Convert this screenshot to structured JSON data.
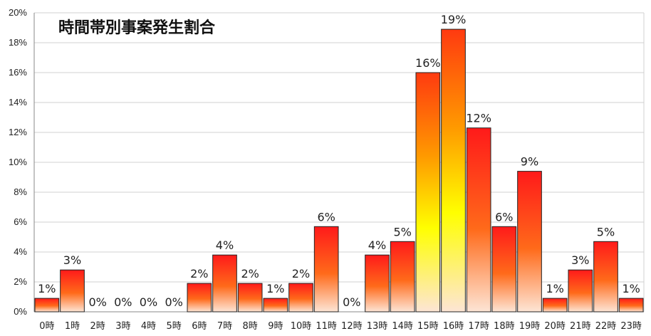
{
  "chart_data": {
    "type": "bar",
    "title": "時間帯別事案発生割合",
    "xlabel": "",
    "ylabel": "",
    "categories": [
      "0時",
      "1時",
      "2時",
      "3時",
      "4時",
      "5時",
      "6時",
      "7時",
      "8時",
      "9時",
      "10時",
      "11時",
      "12時",
      "13時",
      "14時",
      "15時",
      "16時",
      "17時",
      "18時",
      "19時",
      "20時",
      "21時",
      "22時",
      "23時"
    ],
    "values": [
      0.9,
      2.8,
      0,
      0,
      0,
      0,
      1.9,
      3.8,
      1.9,
      0.9,
      1.9,
      5.7,
      0,
      3.8,
      4.7,
      16.0,
      18.9,
      12.3,
      5.7,
      9.4,
      0.9,
      2.8,
      4.7,
      0.9
    ],
    "data_labels": [
      "1%",
      "3%",
      "0%",
      "0%",
      "0%",
      "0%",
      "2%",
      "4%",
      "2%",
      "1%",
      "2%",
      "6%",
      "0%",
      "4%",
      "5%",
      "16%",
      "19%",
      "12%",
      "6%",
      "9%",
      "1%",
      "3%",
      "5%",
      "1%"
    ],
    "y_ticks": [
      "0%",
      "2%",
      "4%",
      "6%",
      "8%",
      "10%",
      "12%",
      "14%",
      "16%",
      "18%",
      "20%"
    ],
    "ylim": [
      0,
      20
    ],
    "grid": true,
    "legend": "none",
    "colors": {
      "gradient_top": "#ff1a1a",
      "gradient_mid": "#ffb000",
      "gradient_bottom": "#fde5d5",
      "center_top": "#ffb000",
      "center_mid": "#ffff00",
      "center_bottom": "#fde5d5"
    }
  }
}
